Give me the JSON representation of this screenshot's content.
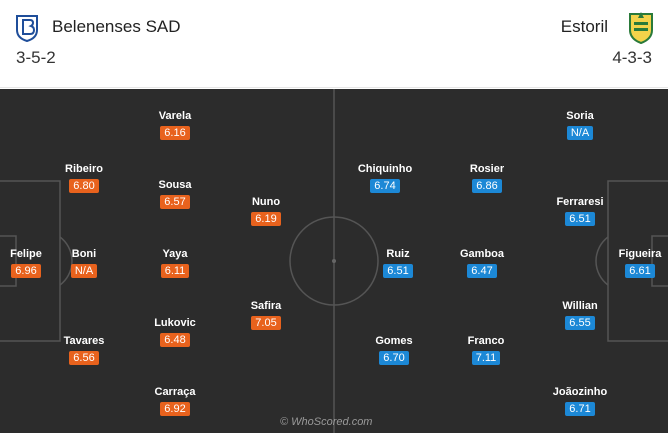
{
  "home_team": {
    "name": "Belenenses SAD",
    "formation": "3-5-2",
    "crest_icon": "belenenses-crest-icon"
  },
  "away_team": {
    "name": "Estoril",
    "formation": "4-3-3",
    "crest_icon": "estoril-crest-icon"
  },
  "home_players": [
    {
      "name": "Felipe",
      "rating": "6.96"
    },
    {
      "name": "Ribeiro",
      "rating": "6.80"
    },
    {
      "name": "Boni",
      "rating": "N/A"
    },
    {
      "name": "Tavares",
      "rating": "6.56"
    },
    {
      "name": "Varela",
      "rating": "6.16"
    },
    {
      "name": "Sousa",
      "rating": "6.57"
    },
    {
      "name": "Yaya",
      "rating": "6.11"
    },
    {
      "name": "Lukovic",
      "rating": "6.48"
    },
    {
      "name": "Carraça",
      "rating": "6.92"
    },
    {
      "name": "Nuno",
      "rating": "6.19"
    },
    {
      "name": "Safira",
      "rating": "7.05"
    }
  ],
  "away_players": [
    {
      "name": "Chiquinho",
      "rating": "6.74"
    },
    {
      "name": "Ruiz",
      "rating": "6.51"
    },
    {
      "name": "Gomes",
      "rating": "6.70"
    },
    {
      "name": "Rosier",
      "rating": "6.86"
    },
    {
      "name": "Gamboa",
      "rating": "6.47"
    },
    {
      "name": "Franco",
      "rating": "7.11"
    },
    {
      "name": "Soria",
      "rating": "N/A"
    },
    {
      "name": "Ferraresi",
      "rating": "6.51"
    },
    {
      "name": "Willian",
      "rating": "6.55"
    },
    {
      "name": "Joãozinho",
      "rating": "6.71"
    },
    {
      "name": "Figueira",
      "rating": "6.61"
    }
  ],
  "colors": {
    "home_rating": "#e8621d",
    "away_rating": "#1c88d6",
    "pitch": "#2c2c2c",
    "lines": "#555555"
  },
  "watermark": "© WhoScored.com"
}
